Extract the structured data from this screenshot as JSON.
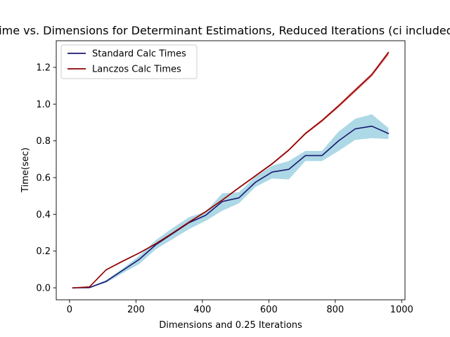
{
  "chart_data": {
    "type": "line",
    "title": "Time vs. Dimensions for Determinant Estimations, Reduced Iterations (ci included)",
    "xlabel": "Dimensions and 0.25 Iterations",
    "ylabel": "Time(sec)",
    "xlim": [
      -40,
      1010
    ],
    "ylim": [
      -0.065,
      1.345
    ],
    "xticks": [
      0,
      200,
      400,
      600,
      800,
      1000
    ],
    "yticks": [
      0.0,
      0.2,
      0.4,
      0.6,
      0.8,
      1.0,
      1.2
    ],
    "grid": false,
    "legend_position": "upper left",
    "x": [
      10,
      60,
      110,
      160,
      210,
      260,
      310,
      360,
      410,
      460,
      510,
      560,
      610,
      660,
      710,
      760,
      810,
      860,
      910,
      960
    ],
    "series": [
      {
        "name": "Standard Calc Times",
        "color": "#191970",
        "band_color": "#add8e6",
        "values": [
          0.0,
          0.001,
          0.035,
          0.095,
          0.155,
          0.235,
          0.295,
          0.355,
          0.395,
          0.47,
          0.49,
          0.575,
          0.63,
          0.645,
          0.72,
          0.72,
          0.8,
          0.865,
          0.88,
          0.84
        ],
        "ci_lower": [
          0.0,
          0.0,
          0.028,
          0.08,
          0.13,
          0.21,
          0.265,
          0.32,
          0.365,
          0.42,
          0.46,
          0.55,
          0.595,
          0.59,
          0.69,
          0.69,
          0.745,
          0.805,
          0.815,
          0.81
        ],
        "ci_upper": [
          0.002,
          0.004,
          0.042,
          0.105,
          0.175,
          0.26,
          0.325,
          0.385,
          0.415,
          0.515,
          0.52,
          0.605,
          0.665,
          0.69,
          0.745,
          0.745,
          0.85,
          0.92,
          0.945,
          0.87
        ]
      },
      {
        "name": "Lanczos Calc Times",
        "color": "#8b0000",
        "band_color": "#f08080",
        "values": [
          0.0,
          0.005,
          0.098,
          0.145,
          0.19,
          0.24,
          0.298,
          0.358,
          0.415,
          0.478,
          0.545,
          0.61,
          0.675,
          0.75,
          0.84,
          0.91,
          0.99,
          1.075,
          1.16,
          1.28
        ],
        "ci_lower": [
          0.0,
          0.003,
          0.094,
          0.141,
          0.186,
          0.236,
          0.294,
          0.354,
          0.41,
          0.473,
          0.54,
          0.604,
          0.669,
          0.744,
          0.833,
          0.902,
          0.981,
          1.064,
          1.15,
          1.265
        ],
        "ci_upper": [
          0.001,
          0.007,
          0.101,
          0.149,
          0.194,
          0.244,
          0.302,
          0.362,
          0.419,
          0.482,
          0.549,
          0.615,
          0.68,
          0.756,
          0.846,
          0.917,
          0.998,
          1.084,
          1.169,
          1.29
        ]
      }
    ]
  }
}
